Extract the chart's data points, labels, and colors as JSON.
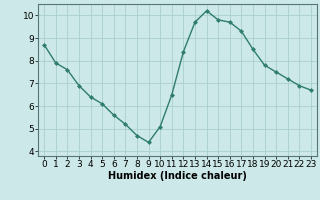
{
  "x": [
    0,
    1,
    2,
    3,
    4,
    5,
    6,
    7,
    8,
    9,
    10,
    11,
    12,
    13,
    14,
    15,
    16,
    17,
    18,
    19,
    20,
    21,
    22,
    23
  ],
  "y": [
    8.7,
    7.9,
    7.6,
    6.9,
    6.4,
    6.1,
    5.6,
    5.2,
    4.7,
    4.4,
    5.1,
    6.5,
    8.4,
    9.7,
    10.2,
    9.8,
    9.7,
    9.3,
    8.5,
    7.8,
    7.5,
    7.2,
    6.9,
    6.7
  ],
  "line_color": "#2e7d6e",
  "marker": "D",
  "marker_size": 2.0,
  "bg_color": "#cce8e8",
  "grid_color": "#aacece",
  "xlabel": "Humidex (Indice chaleur)",
  "xlim": [
    -0.5,
    23.5
  ],
  "ylim": [
    3.8,
    10.5
  ],
  "yticks": [
    4,
    5,
    6,
    7,
    8,
    9,
    10
  ],
  "xticks": [
    0,
    1,
    2,
    3,
    4,
    5,
    6,
    7,
    8,
    9,
    10,
    11,
    12,
    13,
    14,
    15,
    16,
    17,
    18,
    19,
    20,
    21,
    22,
    23
  ],
  "xlabel_fontsize": 7,
  "tick_fontsize": 6.5,
  "line_width": 1.0
}
